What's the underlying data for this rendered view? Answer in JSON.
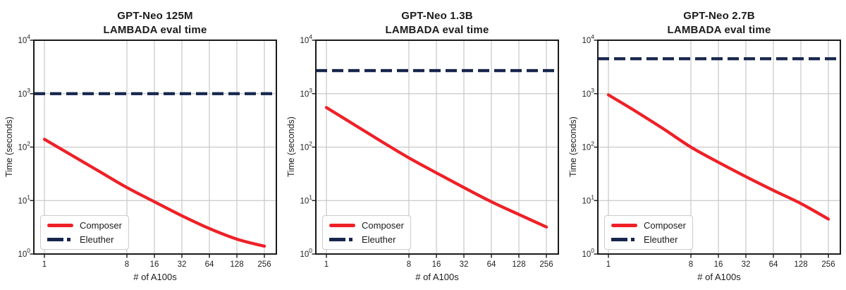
{
  "colors": {
    "composer": "#ef2027",
    "eleuther": "#17264d",
    "grid": "#c9c9c9",
    "axis": "#1a1a1a",
    "text": "#1f1f1f",
    "legend_border": "#cccccc",
    "background": "#ffffff"
  },
  "chart_data": [
    {
      "type": "line",
      "title_line1": "GPT-Neo 125M",
      "title_line2": "LAMBADA eval time",
      "xlabel": "# of A100s",
      "ylabel": "Time (seconds)",
      "x_scale": "log2",
      "y_scale": "log10",
      "xlim": [
        1,
        256
      ],
      "ylim": [
        1,
        10000
      ],
      "x_ticks": [
        1,
        8,
        16,
        32,
        64,
        128,
        256
      ],
      "y_ticks": [
        1,
        10,
        100,
        1000,
        10000
      ],
      "grid": true,
      "legend_position": "lower left",
      "x": [
        1,
        2,
        4,
        8,
        16,
        32,
        64,
        128,
        256
      ],
      "series": [
        {
          "name": "Composer",
          "style": "solid",
          "color_key": "composer",
          "values": [
            140,
            70,
            35,
            17.5,
            9.5,
            5.2,
            3.0,
            1.9,
            1.4
          ]
        },
        {
          "name": "Eleuther",
          "style": "dashed",
          "color_key": "eleuther",
          "constant_value": 1000
        }
      ]
    },
    {
      "type": "line",
      "title_line1": "GPT-Neo 1.3B",
      "title_line2": "LAMBADA eval time",
      "xlabel": "# of A100s",
      "ylabel": "Time (seconds)",
      "x_scale": "log2",
      "y_scale": "log10",
      "xlim": [
        1,
        256
      ],
      "ylim": [
        1,
        10000
      ],
      "x_ticks": [
        1,
        8,
        16,
        32,
        64,
        128,
        256
      ],
      "y_ticks": [
        1,
        10,
        100,
        1000,
        10000
      ],
      "grid": true,
      "legend_position": "lower left",
      "x": [
        1,
        2,
        4,
        8,
        16,
        32,
        64,
        128,
        256
      ],
      "series": [
        {
          "name": "Composer",
          "style": "solid",
          "color_key": "composer",
          "values": [
            550,
            265,
            128,
            63,
            33,
            17.5,
            9.5,
            5.5,
            3.2
          ]
        },
        {
          "name": "Eleuther",
          "style": "dashed",
          "color_key": "eleuther",
          "constant_value": 2700
        }
      ]
    },
    {
      "type": "line",
      "title_line1": "GPT-Neo 2.7B",
      "title_line2": "LAMBADA eval time",
      "xlabel": "# of A100s",
      "ylabel": "Time (seconds)",
      "x_scale": "log2",
      "y_scale": "log10",
      "xlim": [
        1,
        256
      ],
      "ylim": [
        1,
        10000
      ],
      "x_ticks": [
        1,
        8,
        16,
        32,
        64,
        128,
        256
      ],
      "y_ticks": [
        1,
        10,
        100,
        1000,
        10000
      ],
      "grid": true,
      "legend_position": "lower left",
      "x": [
        1,
        2,
        4,
        8,
        16,
        32,
        64,
        128,
        256
      ],
      "series": [
        {
          "name": "Composer",
          "style": "solid",
          "color_key": "composer",
          "values": [
            950,
            465,
            220,
            100,
            52,
            28,
            15.5,
            8.8,
            4.5
          ]
        },
        {
          "name": "Eleuther",
          "style": "dashed",
          "color_key": "eleuther",
          "constant_value": 4500
        }
      ]
    }
  ]
}
